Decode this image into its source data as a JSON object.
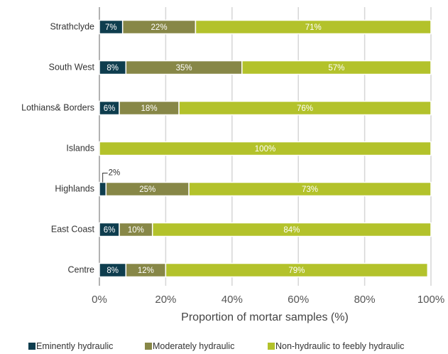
{
  "chart_data": {
    "type": "stacked-bar-horizontal",
    "x_label": "Proportion of mortar samples (%)",
    "categories": [
      "Strathclyde",
      "South West",
      "Lothians& Borders",
      "Islands",
      "Highlands",
      "East Coast",
      "Centre"
    ],
    "series": [
      {
        "name": "Eminently hydraulic",
        "color": "#0e3d4e",
        "values": [
          7,
          8,
          6,
          0,
          2,
          6,
          8
        ],
        "value_labels": [
          "7%",
          "8%",
          "6%",
          null,
          "2%",
          "6%",
          "8%"
        ]
      },
      {
        "name": "Moderately hydraulic",
        "color": "#878747",
        "values": [
          22,
          35,
          18,
          0,
          25,
          10,
          12
        ],
        "value_labels": [
          "22%",
          "35%",
          "18%",
          null,
          "25%",
          "10%",
          "12%"
        ]
      },
      {
        "name": "Non-hydraulic to feebly hydraulic",
        "color": "#b3c22b",
        "values": [
          71,
          57,
          76,
          100,
          73,
          84,
          79
        ],
        "value_labels": [
          "71%",
          "57%",
          "76%",
          "100%",
          "73%",
          "84%",
          "79%"
        ]
      }
    ],
    "xlim": [
      0,
      100
    ],
    "xticks": [
      {
        "value": 0,
        "label": "0%"
      },
      {
        "value": 20,
        "label": "20%"
      },
      {
        "value": 40,
        "label": "40%"
      },
      {
        "value": 60,
        "label": "60%"
      },
      {
        "value": 80,
        "label": "80%"
      },
      {
        "value": 100,
        "label": "100%"
      }
    ],
    "grid": true,
    "legend": "bottom"
  }
}
